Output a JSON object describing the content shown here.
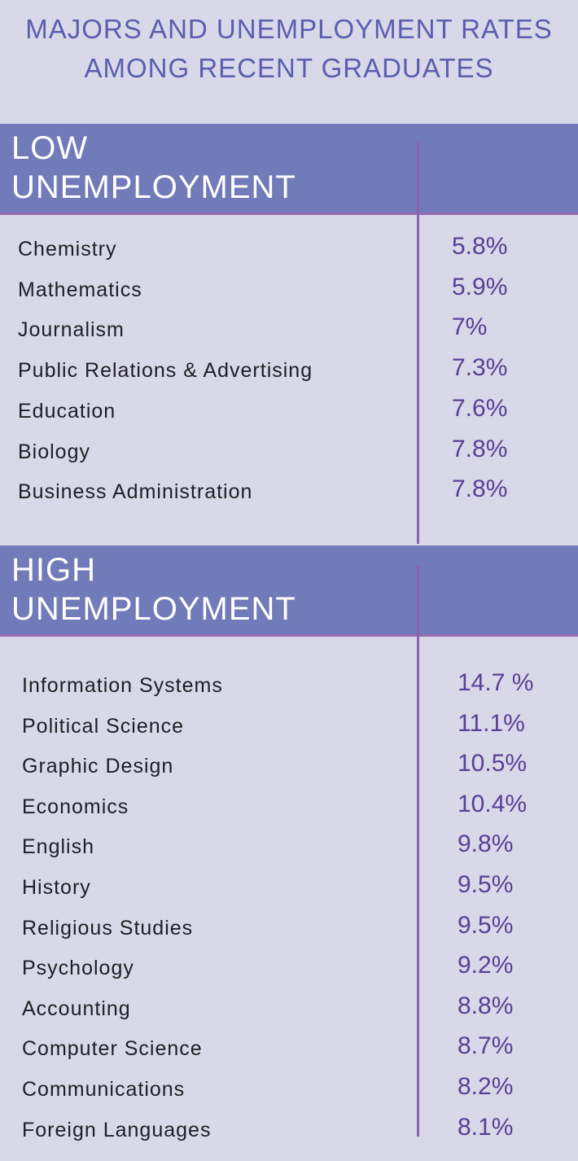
{
  "chart_data": {
    "type": "table",
    "title": "MAJORS AND UNEMPLOYMENT RATES AMONG RECENT GRADUATES",
    "sections": [
      {
        "heading": "LOW UNEMPLOYMENT",
        "rows": [
          {
            "label": "Chemistry",
            "value_text": "5.8%",
            "value": 5.8
          },
          {
            "label": "Mathematics",
            "value_text": "5.9%",
            "value": 5.9
          },
          {
            "label": "Journalism",
            "value_text": "7%",
            "value": 7
          },
          {
            "label": "Public Relations & Advertising",
            "value_text": "7.3%",
            "value": 7.3
          },
          {
            "label": "Education",
            "value_text": "7.6%",
            "value": 7.6
          },
          {
            "label": "Biology",
            "value_text": "7.8%",
            "value": 7.8
          },
          {
            "label": "Business Administration",
            "value_text": "7.8%",
            "value": 7.8
          }
        ]
      },
      {
        "heading": "HIGH UNEMPLOYMENT",
        "rows": [
          {
            "label": "Information Systems",
            "value_text": "14.7 %",
            "value": 14.7
          },
          {
            "label": "Political Science",
            "value_text": "11.1%",
            "value": 11.1
          },
          {
            "label": "Graphic Design",
            "value_text": "10.5%",
            "value": 10.5
          },
          {
            "label": "Economics",
            "value_text": "10.4%",
            "value": 10.4
          },
          {
            "label": "English",
            "value_text": "9.8%",
            "value": 9.8
          },
          {
            "label": "History",
            "value_text": "9.5%",
            "value": 9.5
          },
          {
            "label": "Religious Studies",
            "value_text": "9.5%",
            "value": 9.5
          },
          {
            "label": "Psychology",
            "value_text": "9.2%",
            "value": 9.2
          },
          {
            "label": "Accounting",
            "value_text": "8.8%",
            "value": 8.8
          },
          {
            "label": "Computer Science",
            "value_text": "8.7%",
            "value": 8.7
          },
          {
            "label": "Communications",
            "value_text": "8.2%",
            "value": 8.2
          },
          {
            "label": "Foreign Languages",
            "value_text": "8.1%",
            "value": 8.1
          }
        ]
      }
    ]
  },
  "colors": {
    "background": "#d8d8e8",
    "band": "#727bb9",
    "title_text": "#5b5eb0",
    "value_text": "#5a3f96",
    "divider": "#8e5fae"
  }
}
